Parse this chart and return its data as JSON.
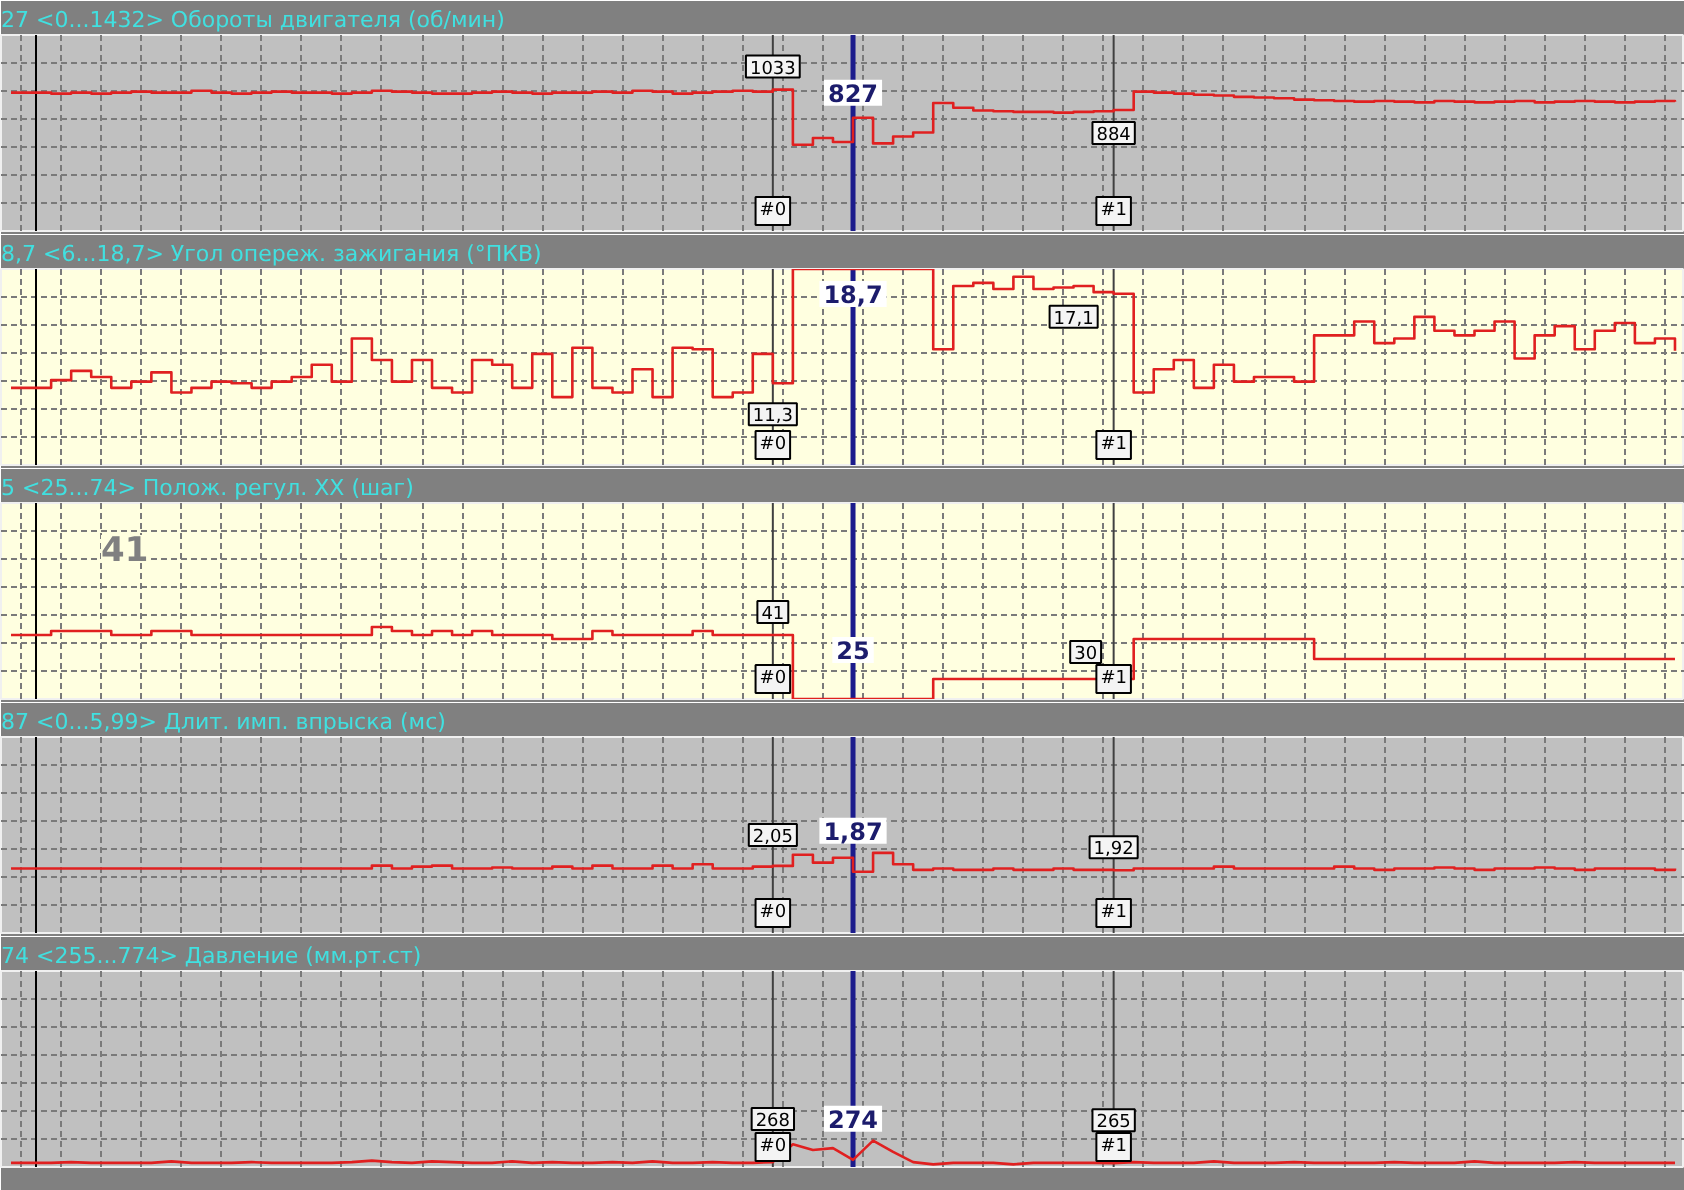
{
  "chart_data": [
    {
      "type": "step",
      "title": "27  <0...1432>  Обороты двигателя (об/мин)",
      "categories": [
        null,
        null,
        null,
        null,
        null,
        null,
        null,
        null,
        null,
        null,
        null,
        null,
        null,
        null,
        null,
        null,
        null,
        null,
        null,
        null,
        null,
        null,
        null,
        null,
        null,
        null,
        null,
        null,
        null,
        null,
        null,
        null,
        null,
        null,
        null,
        null,
        null,
        null,
        null,
        null,
        null,
        null,
        null,
        null,
        null,
        null,
        null,
        null,
        null,
        null,
        null,
        null,
        null,
        null,
        null,
        null,
        null,
        null,
        null,
        null,
        null,
        null,
        null,
        null,
        null,
        null,
        null,
        null,
        null,
        null,
        null,
        null,
        null,
        null,
        null,
        null,
        null,
        null,
        null,
        null,
        null,
        null,
        null,
        null
      ],
      "values": [
        1011,
        1011,
        1004,
        1011,
        1004,
        1011,
        1018,
        1011,
        1011,
        1025,
        1011,
        1004,
        1011,
        1018,
        1011,
        1011,
        1004,
        1011,
        1025,
        1018,
        1011,
        1004,
        1004,
        1011,
        1018,
        1011,
        1004,
        1011,
        1011,
        1018,
        1011,
        1025,
        1018,
        1004,
        1011,
        1018,
        1025,
        1018,
        1033,
        630,
        680,
        650,
        827,
        640,
        690,
        720,
        935,
        900,
        880,
        875,
        870,
        870,
        865,
        870,
        875,
        884,
        1018,
        1011,
        1004,
        996,
        990,
        980,
        975,
        970,
        960,
        955,
        950,
        945,
        950,
        945,
        940,
        950,
        945,
        940,
        945,
        950,
        940,
        945,
        950,
        945,
        940,
        945,
        950,
        945
      ],
      "value_labels": [
        null,
        null,
        null,
        null,
        null,
        null,
        null,
        null,
        null,
        null,
        null,
        null,
        null,
        null,
        null,
        null,
        null,
        null,
        null,
        null,
        null,
        null,
        null,
        null,
        null,
        null,
        null,
        null,
        null,
        null,
        null,
        null,
        null,
        null,
        null,
        null,
        null,
        null,
        "1033",
        null,
        null,
        null,
        "827",
        null,
        null,
        null,
        null,
        null,
        null,
        null,
        null,
        null,
        null,
        null,
        null,
        "884",
        null,
        null,
        null,
        null,
        null,
        null,
        null,
        null,
        null,
        null,
        null,
        null,
        null,
        null,
        null,
        null,
        null,
        null,
        null,
        null,
        null,
        null,
        null,
        null,
        null,
        null,
        null,
        null
      ],
      "color": "#e02020",
      "ylim": [
        0,
        1432
      ],
      "yticks": [
        {
          "value": 205,
          "label": null
        },
        {
          "value": 409,
          "label": null
        },
        {
          "value": 614,
          "label": null
        },
        {
          "value": 818,
          "label": null
        },
        {
          "value": 1023,
          "label": null
        },
        {
          "value": 1227,
          "label": null
        }
      ],
      "grid": true,
      "tick_labels": false,
      "annotations": [
        "#0",
        "#1"
      ]
    },
    {
      "type": "step",
      "title": "8,7  <6...18,7>  Угол опереж. зажигания (°ПКВ)",
      "categories": [
        null,
        null,
        null,
        null,
        null,
        null,
        null,
        null,
        null,
        null,
        null,
        null,
        null,
        null,
        null,
        null,
        null,
        null,
        null,
        null,
        null,
        null,
        null,
        null,
        null,
        null,
        null,
        null,
        null,
        null,
        null,
        null,
        null,
        null,
        null,
        null,
        null,
        null,
        null,
        null,
        null,
        null,
        null,
        null,
        null,
        null,
        null,
        null,
        null,
        null,
        null,
        null,
        null,
        null,
        null,
        null,
        null,
        null,
        null,
        null,
        null,
        null,
        null,
        null,
        null,
        null,
        null,
        null,
        null,
        null,
        null,
        null,
        null,
        null,
        null,
        null,
        null,
        null,
        null,
        null,
        null,
        null,
        null,
        null
      ],
      "values": [
        11.0,
        11.0,
        11.5,
        12.1,
        11.7,
        11.0,
        11.4,
        12.0,
        10.7,
        11.0,
        11.4,
        11.3,
        11.0,
        11.4,
        11.7,
        12.5,
        11.4,
        14.2,
        12.8,
        11.4,
        12.8,
        11.0,
        10.7,
        12.8,
        12.5,
        11.0,
        13.2,
        10.4,
        13.6,
        11.0,
        10.7,
        12.2,
        10.4,
        13.6,
        13.5,
        10.4,
        10.7,
        13.2,
        11.3,
        18.7,
        18.7,
        18.7,
        18.7,
        18.7,
        18.7,
        18.7,
        13.5,
        17.6,
        17.8,
        17.4,
        18.2,
        17.4,
        17.5,
        17.6,
        17.2,
        17.1,
        10.7,
        12.2,
        12.8,
        11.0,
        12.5,
        11.4,
        11.7,
        11.7,
        11.4,
        14.4,
        14.4,
        15.3,
        13.9,
        14.2,
        15.6,
        14.7,
        14.4,
        14.7,
        15.3,
        12.9,
        14.4,
        15.0,
        13.5,
        14.7,
        15.2,
        13.9,
        14.2,
        13.4
      ],
      "value_labels": [
        null,
        null,
        null,
        null,
        null,
        null,
        null,
        null,
        null,
        null,
        null,
        null,
        null,
        null,
        null,
        null,
        null,
        null,
        null,
        null,
        null,
        null,
        null,
        null,
        null,
        null,
        null,
        null,
        null,
        null,
        null,
        null,
        null,
        null,
        null,
        null,
        null,
        null,
        "11,3",
        null,
        null,
        null,
        "18,7",
        null,
        null,
        null,
        null,
        null,
        null,
        null,
        null,
        null,
        null,
        null,
        null,
        "17,1",
        null,
        null,
        null,
        null,
        null,
        null,
        null,
        null,
        null,
        null,
        null,
        null,
        null,
        null,
        null,
        null,
        null,
        null,
        null,
        null,
        null,
        null,
        null,
        null,
        null,
        null,
        null,
        null
      ],
      "color": "#e02020",
      "ylim": [
        6,
        18.7
      ],
      "yticks": [
        {
          "value": 7.8,
          "label": null
        },
        {
          "value": 9.6,
          "label": null
        },
        {
          "value": 11.4,
          "label": null
        },
        {
          "value": 13.3,
          "label": null
        },
        {
          "value": 15.1,
          "label": null
        },
        {
          "value": 16.9,
          "label": null
        }
      ],
      "grid": true,
      "tick_labels": false,
      "annotations": [
        "#0",
        "#1"
      ]
    },
    {
      "type": "step",
      "title": "5  <25...74>  Полож. регул. XX (шаг)",
      "categories": [
        null,
        null,
        null,
        null,
        null,
        null,
        null,
        null,
        null,
        null,
        null,
        null,
        null,
        null,
        null,
        null,
        null,
        null,
        null,
        null,
        null,
        null,
        null,
        null,
        null,
        null,
        null,
        null,
        null,
        null,
        null,
        null,
        null,
        null,
        null,
        null,
        null,
        null,
        null,
        null,
        null,
        null,
        null,
        null,
        null,
        null,
        null,
        null,
        null,
        null,
        null,
        null,
        null,
        null,
        null,
        null,
        null,
        null,
        null,
        null,
        null,
        null,
        null,
        null,
        null,
        null,
        null,
        null,
        null,
        null,
        null,
        null,
        null,
        null,
        null,
        null,
        null,
        null,
        null,
        null,
        null,
        null,
        null,
        null
      ],
      "values": [
        41,
        41,
        42,
        42,
        42,
        41,
        41,
        42,
        42,
        41,
        41,
        41,
        41,
        41,
        41,
        41,
        41,
        41,
        43,
        42,
        41,
        42,
        41,
        42,
        41,
        41,
        41,
        40,
        40,
        42,
        41,
        41,
        41,
        41,
        42,
        41,
        41,
        41,
        41,
        25,
        25,
        25,
        25,
        25,
        25,
        25,
        30,
        30,
        30,
        30,
        30,
        30,
        30,
        30,
        30,
        30,
        40,
        40,
        40,
        40,
        40,
        40,
        40,
        40,
        40,
        35,
        35,
        35,
        35,
        35,
        35,
        35,
        35,
        35,
        35,
        35,
        35,
        35,
        35,
        35,
        35,
        35,
        35,
        35
      ],
      "value_labels": [
        null,
        null,
        null,
        null,
        null,
        null,
        null,
        null,
        null,
        null,
        null,
        null,
        null,
        null,
        null,
        null,
        null,
        null,
        null,
        null,
        null,
        null,
        null,
        null,
        null,
        null,
        null,
        null,
        null,
        null,
        null,
        null,
        null,
        null,
        null,
        null,
        null,
        null,
        "41",
        null,
        null,
        null,
        "25",
        null,
        null,
        null,
        null,
        null,
        null,
        null,
        null,
        null,
        null,
        null,
        null,
        "30",
        null,
        null,
        null,
        null,
        null,
        null,
        null,
        null,
        null,
        null,
        null,
        null,
        null,
        null,
        null,
        null,
        null,
        null,
        null,
        null,
        null,
        null,
        null,
        null,
        null,
        null,
        null,
        null
      ],
      "color": "#e02020",
      "ylim": [
        25,
        74
      ],
      "yticks": [
        {
          "value": 32,
          "label": null
        },
        {
          "value": 39,
          "label": null
        },
        {
          "value": 46,
          "label": null
        },
        {
          "value": 53,
          "label": null
        },
        {
          "value": 60,
          "label": null
        },
        {
          "value": 67,
          "label": null
        }
      ],
      "grid": true,
      "tick_labels": false,
      "annotations": [
        "41",
        "#0",
        "#1"
      ]
    },
    {
      "type": "step",
      "title": "87  <0...5,99>  Длит. имп. впрыска (мс)",
      "categories": [
        null,
        null,
        null,
        null,
        null,
        null,
        null,
        null,
        null,
        null,
        null,
        null,
        null,
        null,
        null,
        null,
        null,
        null,
        null,
        null,
        null,
        null,
        null,
        null,
        null,
        null,
        null,
        null,
        null,
        null,
        null,
        null,
        null,
        null,
        null,
        null,
        null,
        null,
        null,
        null,
        null,
        null,
        null,
        null,
        null,
        null,
        null,
        null,
        null,
        null,
        null,
        null,
        null,
        null,
        null,
        null,
        null,
        null,
        null,
        null,
        null,
        null,
        null,
        null,
        null,
        null,
        null,
        null,
        null,
        null,
        null,
        null,
        null,
        null,
        null,
        null,
        null,
        null,
        null,
        null,
        null,
        null,
        null,
        null
      ],
      "values": [
        1.97,
        1.97,
        1.97,
        1.97,
        1.97,
        1.97,
        1.97,
        1.97,
        1.97,
        1.97,
        1.97,
        1.97,
        1.97,
        1.97,
        1.97,
        1.97,
        1.97,
        1.97,
        2.06,
        1.97,
        2.03,
        2.06,
        1.97,
        1.97,
        2.0,
        1.97,
        1.97,
        2.03,
        1.97,
        2.06,
        1.97,
        1.97,
        2.06,
        1.97,
        2.1,
        1.97,
        1.97,
        2.03,
        2.05,
        2.39,
        2.15,
        2.3,
        1.87,
        2.45,
        2.1,
        1.93,
        1.97,
        1.93,
        1.93,
        1.97,
        1.93,
        1.93,
        1.97,
        1.93,
        1.93,
        1.92,
        1.97,
        1.97,
        1.97,
        1.97,
        2.03,
        1.97,
        1.97,
        1.97,
        1.97,
        1.97,
        2.03,
        1.97,
        1.93,
        1.97,
        1.97,
        2.0,
        1.97,
        1.93,
        1.97,
        1.97,
        2.0,
        1.97,
        1.93,
        1.97,
        1.97,
        1.97,
        1.93,
        1.97
      ],
      "value_labels": [
        null,
        null,
        null,
        null,
        null,
        null,
        null,
        null,
        null,
        null,
        null,
        null,
        null,
        null,
        null,
        null,
        null,
        null,
        null,
        null,
        null,
        null,
        null,
        null,
        null,
        null,
        null,
        null,
        null,
        null,
        null,
        null,
        null,
        null,
        null,
        null,
        null,
        null,
        "2,05",
        null,
        null,
        null,
        "1,87",
        null,
        null,
        null,
        null,
        null,
        null,
        null,
        null,
        null,
        null,
        null,
        null,
        "1,92",
        null,
        null,
        null,
        null,
        null,
        null,
        null,
        null,
        null,
        null,
        null,
        null,
        null,
        null,
        null,
        null,
        null,
        null,
        null,
        null,
        null,
        null,
        null,
        null,
        null,
        null,
        null,
        null
      ],
      "color": "#e02020",
      "ylim": [
        0,
        5.99
      ],
      "yticks": [
        {
          "value": 0.86,
          "label": null
        },
        {
          "value": 1.71,
          "label": null
        },
        {
          "value": 2.57,
          "label": null
        },
        {
          "value": 3.42,
          "label": null
        },
        {
          "value": 4.28,
          "label": null
        },
        {
          "value": 5.13,
          "label": null
        }
      ],
      "grid": true,
      "tick_labels": false,
      "annotations": [
        "#0",
        "#1"
      ]
    },
    {
      "type": "line",
      "title": "74  <255...774>  Давление (мм.рт.ст)",
      "categories": [
        null,
        null,
        null,
        null,
        null,
        null,
        null,
        null,
        null,
        null,
        null,
        null,
        null,
        null,
        null,
        null,
        null,
        null,
        null,
        null,
        null,
        null,
        null,
        null,
        null,
        null,
        null,
        null,
        null,
        null,
        null,
        null,
        null,
        null,
        null,
        null,
        null,
        null,
        null,
        null,
        null,
        null,
        null,
        null,
        null,
        null,
        null,
        null,
        null,
        null,
        null,
        null,
        null,
        null,
        null,
        null,
        null,
        null,
        null,
        null,
        null,
        null,
        null,
        null,
        null,
        null,
        null,
        null,
        null,
        null,
        null,
        null,
        null,
        null,
        null,
        null,
        null,
        null,
        null,
        null,
        null,
        null,
        null,
        null
      ],
      "values": [
        266,
        266,
        266,
        268,
        266,
        266,
        266,
        266,
        270,
        266,
        266,
        266,
        268,
        266,
        266,
        266,
        266,
        268,
        272,
        268,
        266,
        270,
        268,
        266,
        266,
        270,
        266,
        268,
        266,
        266,
        268,
        266,
        270,
        266,
        266,
        268,
        266,
        266,
        268,
        315,
        300,
        305,
        274,
        325,
        295,
        268,
        262,
        266,
        266,
        266,
        262,
        266,
        266,
        266,
        266,
        265,
        268,
        266,
        266,
        266,
        270,
        266,
        266,
        266,
        268,
        266,
        266,
        266,
        266,
        268,
        266,
        266,
        266,
        270,
        266,
        266,
        266,
        266,
        268,
        266,
        266,
        266,
        266,
        266
      ],
      "value_labels": [
        null,
        null,
        null,
        null,
        null,
        null,
        null,
        null,
        null,
        null,
        null,
        null,
        null,
        null,
        null,
        null,
        null,
        null,
        null,
        null,
        null,
        null,
        null,
        null,
        null,
        null,
        null,
        null,
        null,
        null,
        null,
        null,
        null,
        null,
        null,
        null,
        null,
        null,
        "268",
        null,
        null,
        null,
        "274",
        null,
        null,
        null,
        null,
        null,
        null,
        null,
        null,
        null,
        null,
        null,
        null,
        "265",
        null,
        null,
        null,
        null,
        null,
        null,
        null,
        null,
        null,
        null,
        null,
        null,
        null,
        null,
        null,
        null,
        null,
        null,
        null,
        null,
        null,
        null,
        null,
        null,
        null,
        null,
        null,
        null
      ],
      "color": "#e02020",
      "ylim": [
        255,
        774
      ],
      "yticks": [
        {
          "value": 329,
          "label": null
        },
        {
          "value": 403,
          "label": null
        },
        {
          "value": 477,
          "label": null
        },
        {
          "value": 552,
          "label": null
        },
        {
          "value": 626,
          "label": null
        },
        {
          "value": 700,
          "label": null
        }
      ],
      "grid": true,
      "tick_labels": false,
      "annotations": [
        "#0",
        "#1"
      ]
    }
  ]
}
